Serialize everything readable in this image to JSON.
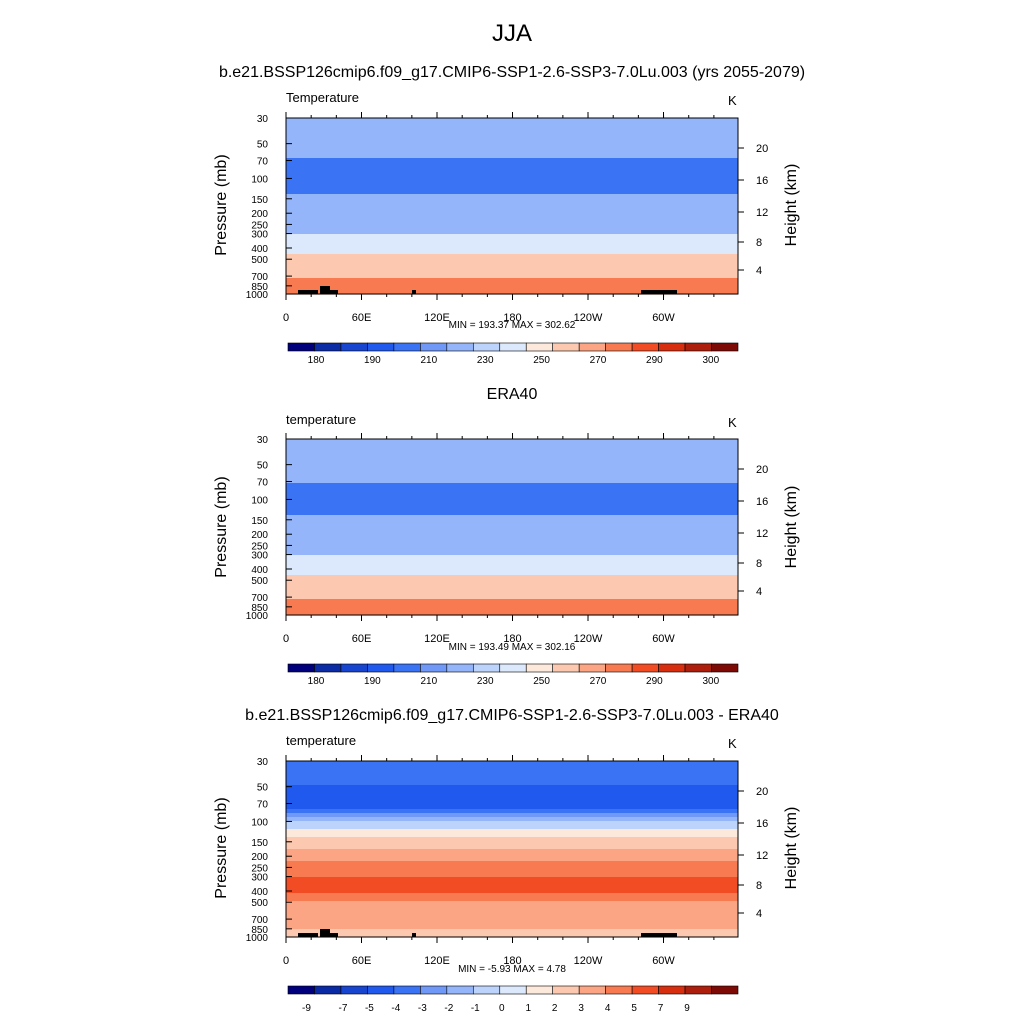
{
  "page": {
    "title": "JJA"
  },
  "panels": [
    {
      "title": "b.e21.BSSP126cmip6.f09_g17.CMIP6-SSP1-2.6-SSP3-7.0Lu.003 (yrs 2055-2079)",
      "variable": "Temperature",
      "units": "K",
      "stats": "MIN = 193.37  MAX = 302.62",
      "colorbar_labels": [
        "180",
        "190",
        "210",
        "230",
        "250",
        "270",
        "290",
        "300"
      ]
    },
    {
      "title": "ERA40",
      "variable": "temperature",
      "units": "K",
      "stats": "MIN = 193.49  MAX = 302.16",
      "colorbar_labels": [
        "180",
        "190",
        "210",
        "230",
        "250",
        "270",
        "290",
        "300"
      ]
    },
    {
      "title": "b.e21.BSSP126cmip6.f09_g17.CMIP6-SSP1-2.6-SSP3-7.0Lu.003 - ERA40",
      "variable": "temperature",
      "units": "K",
      "stats": "MIN =  -5.93  MAX =   4.78",
      "colorbar_labels": [
        "-9",
        "-7",
        "-5",
        "-4",
        "-3",
        "-2",
        "-1",
        "0",
        "1",
        "2",
        "3",
        "4",
        "5",
        "7",
        "9"
      ]
    }
  ],
  "axes": {
    "ylabel_left": "Pressure (mb)",
    "ylabel_right": "Height (km)",
    "pressure_ticks": [
      "30",
      "50",
      "70",
      "100",
      "150",
      "200",
      "250",
      "300",
      "400",
      "500",
      "700",
      "850",
      "1000"
    ],
    "height_ticks": [
      "20",
      "16",
      "12",
      "8",
      "4"
    ],
    "x_ticks": [
      "0",
      "60E",
      "120E",
      "180",
      "120W",
      "60W"
    ]
  },
  "colors": {
    "abs_scale": [
      "#00007d",
      "#0c2ca6",
      "#1745cf",
      "#1f59ee",
      "#3b73f5",
      "#6f98f7",
      "#95b5fa",
      "#bcd3fc",
      "#dce9fd",
      "#fde9dc",
      "#fcc9b0",
      "#fba584",
      "#f87a51",
      "#f24c25",
      "#d82e10",
      "#ad1f0c",
      "#7d0a05"
    ],
    "diff_scale": [
      "#00007d",
      "#0a2aa5",
      "#1745cf",
      "#1f59ee",
      "#3b73f5",
      "#6f98f7",
      "#95b5fa",
      "#bcd3fc",
      "#dce9fd",
      "#fde9dc",
      "#fcc9b0",
      "#fba584",
      "#f87a51",
      "#f24c25",
      "#d82e10",
      "#ad1f0c",
      "#7d0a05"
    ]
  },
  "chart_data": [
    {
      "type": "heatmap",
      "title": "b.e21.BSSP126cmip6.f09_g17.CMIP6-SSP1-2.6-SSP3-7.0Lu.003 (yrs 2055-2079)",
      "xlabel": "",
      "ylabel": "Pressure (mb)",
      "y2label": "Height (km)",
      "x_ticks": [
        "0",
        "60E",
        "120E",
        "180",
        "120W",
        "60W"
      ],
      "y_ticks": [
        30,
        50,
        70,
        100,
        150,
        200,
        250,
        300,
        400,
        500,
        700,
        850,
        1000
      ],
      "y_scale": "log",
      "ylim": [
        1000,
        30
      ],
      "levels": [
        180,
        190,
        210,
        230,
        250,
        270,
        290,
        300
      ],
      "profile_pressure": [
        30,
        50,
        70,
        100,
        150,
        200,
        250,
        300,
        400,
        500,
        700,
        850,
        1000
      ],
      "profile_value": [
        222,
        214,
        209,
        203,
        212,
        220,
        225,
        231,
        244,
        255,
        270,
        282,
        290
      ],
      "min": 193.37,
      "max": 302.62,
      "units": "K"
    },
    {
      "type": "heatmap",
      "title": "ERA40",
      "xlabel": "",
      "ylabel": "Pressure (mb)",
      "y2label": "Height (km)",
      "x_ticks": [
        "0",
        "60E",
        "120E",
        "180",
        "120W",
        "60W"
      ],
      "y_ticks": [
        30,
        50,
        70,
        100,
        150,
        200,
        250,
        300,
        400,
        500,
        700,
        850,
        1000
      ],
      "y_scale": "log",
      "ylim": [
        1000,
        30
      ],
      "levels": [
        180,
        190,
        210,
        230,
        250,
        270,
        290,
        300
      ],
      "profile_pressure": [
        30,
        50,
        70,
        100,
        150,
        200,
        250,
        300,
        400,
        500,
        700,
        850,
        1000
      ],
      "profile_value": [
        224,
        216,
        211,
        205,
        212,
        220,
        225,
        231,
        244,
        255,
        270,
        282,
        291
      ],
      "min": 193.49,
      "max": 302.16,
      "units": "K"
    },
    {
      "type": "heatmap",
      "title": "b.e21.BSSP126cmip6.f09_g17.CMIP6-SSP1-2.6-SSP3-7.0Lu.003 - ERA40",
      "xlabel": "",
      "ylabel": "Pressure (mb)",
      "y2label": "Height (km)",
      "x_ticks": [
        "0",
        "60E",
        "120E",
        "180",
        "120W",
        "60W"
      ],
      "y_ticks": [
        30,
        50,
        70,
        100,
        150,
        200,
        250,
        300,
        400,
        500,
        700,
        850,
        1000
      ],
      "y_scale": "log",
      "ylim": [
        1000,
        30
      ],
      "levels": [
        -9,
        -7,
        -5,
        -4,
        -3,
        -2,
        -1,
        0,
        1,
        2,
        3,
        4,
        5,
        7,
        9
      ],
      "profile_pressure": [
        30,
        50,
        70,
        100,
        150,
        200,
        250,
        300,
        400,
        500,
        700,
        850,
        1000
      ],
      "profile_value": [
        -3,
        -4,
        -5,
        -1,
        1.5,
        2.5,
        3.5,
        4,
        4,
        3,
        2,
        2,
        1.5
      ],
      "min": -5.93,
      "max": 4.78,
      "units": "K"
    }
  ]
}
